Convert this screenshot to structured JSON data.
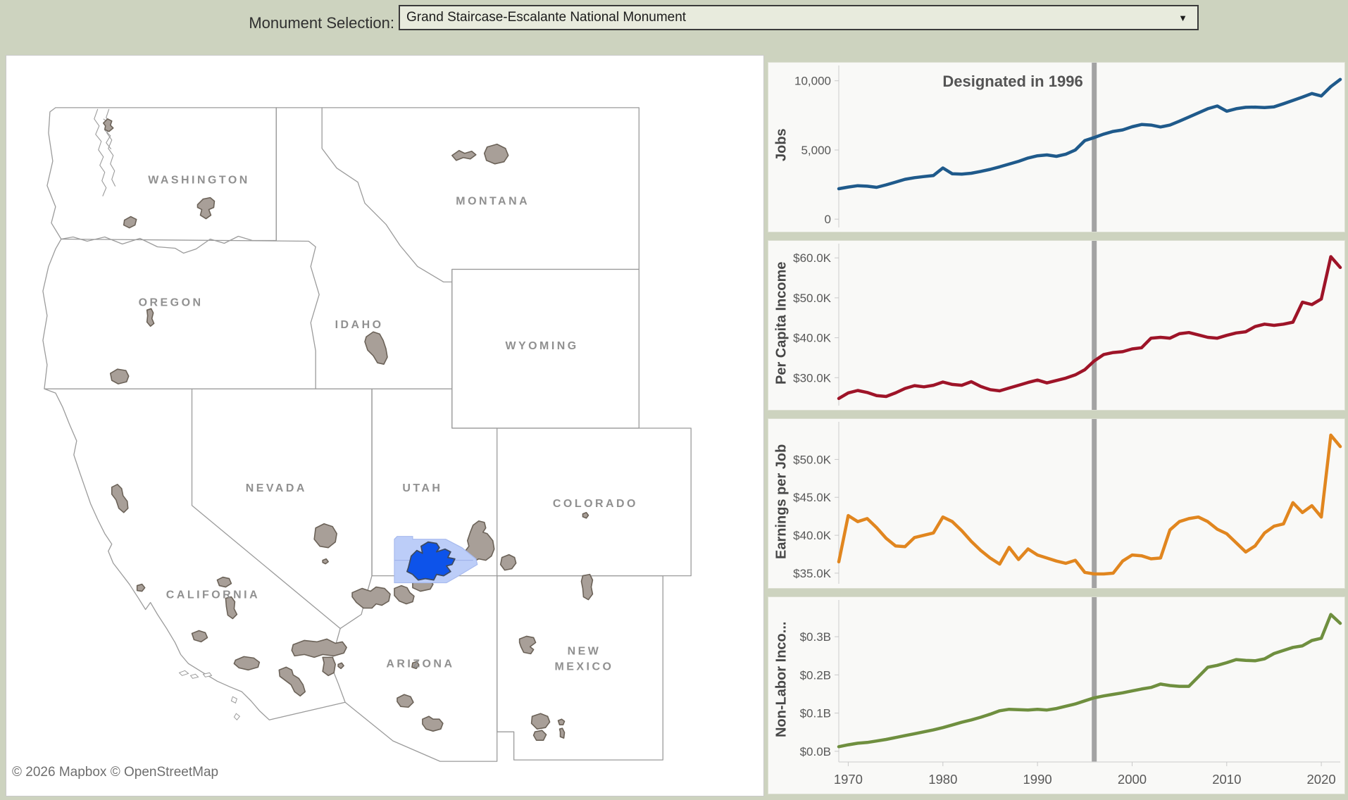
{
  "title_bar": {
    "label": "Monument Selection:",
    "selected_value": "Grand Staircase-Escalante National Monument",
    "caret": "▼"
  },
  "map": {
    "attribution": "© 2026 Mapbox  © OpenStreetMap",
    "state_labels": [
      {
        "text": "WASHINGTON"
      },
      {
        "text": "OREGON"
      },
      {
        "text": "IDAHO"
      },
      {
        "text": "MONTANA"
      },
      {
        "text": "WYOMING"
      },
      {
        "text": "NEVADA"
      },
      {
        "text": "UTAH"
      },
      {
        "text": "COLORADO"
      },
      {
        "text": "CALIFORNIA"
      },
      {
        "text": "ARIZONA"
      },
      {
        "text": "NEW"
      },
      {
        "text": "MEXICO"
      }
    ],
    "selected_monument_color": "#0d53ea",
    "selected_counties_color": "#bccdf8",
    "monument_color": "#a89f98"
  },
  "colors": {
    "background": "#cdd3bf",
    "panel_background": "#f9f9f7",
    "ref_line": "#a3a3a3"
  },
  "ref_line": {
    "year": 1996,
    "label": "Designated in 1996"
  },
  "x_domain": [
    1969,
    2022
  ],
  "x_axis": {
    "ticks": [
      1970,
      1980,
      1990,
      2000,
      2010,
      2020
    ]
  },
  "chart_data": [
    {
      "id": "jobs",
      "type": "line",
      "axis_title": "Jobs",
      "color": "#1f5a8b",
      "ylim": [
        -600,
        10800
      ],
      "yticks": [
        {
          "v": 0,
          "label": "0"
        },
        {
          "v": 5000,
          "label": "5,000"
        },
        {
          "v": 10000,
          "label": "10,000"
        }
      ],
      "values": [
        2200,
        2320,
        2420,
        2380,
        2300,
        2480,
        2680,
        2880,
        3000,
        3080,
        3150,
        3700,
        3280,
        3260,
        3320,
        3450,
        3600,
        3780,
        3980,
        4180,
        4420,
        4580,
        4640,
        4540,
        4700,
        5000,
        5680,
        5900,
        6150,
        6340,
        6450,
        6680,
        6840,
        6800,
        6660,
        6800,
        7080,
        7380,
        7680,
        7980,
        8180,
        7800,
        7980,
        8080,
        8100,
        8060,
        8120,
        8340,
        8580,
        8820,
        9080,
        8900,
        9580,
        10100
      ]
    },
    {
      "id": "pci",
      "type": "line",
      "axis_title": "Per Capita Income",
      "color": "#9e1428",
      "ylim": [
        23000,
        62500
      ],
      "yticks": [
        {
          "v": 30000,
          "label": "$30.0K"
        },
        {
          "v": 40000,
          "label": "$40.0K"
        },
        {
          "v": 50000,
          "label": "$50.0K"
        },
        {
          "v": 60000,
          "label": "$60.0K"
        }
      ],
      "values": [
        24800,
        26200,
        26800,
        26300,
        25500,
        25300,
        26200,
        27300,
        28000,
        27700,
        28100,
        28900,
        28300,
        28100,
        29000,
        27800,
        27000,
        26700,
        27400,
        28100,
        28800,
        29400,
        28700,
        29300,
        29900,
        30700,
        32000,
        34200,
        35800,
        36300,
        36500,
        37200,
        37500,
        39900,
        40100,
        39900,
        41000,
        41300,
        40700,
        40100,
        39900,
        40600,
        41200,
        41500,
        42800,
        43400,
        43100,
        43400,
        43900,
        48900,
        48300,
        49700,
        60300,
        57600
      ]
    },
    {
      "id": "epj",
      "type": "line",
      "axis_title": "Earnings per Job",
      "color": "#e1861f",
      "ylim": [
        33600,
        54400
      ],
      "yticks": [
        {
          "v": 35000,
          "label": "$35.0K"
        },
        {
          "v": 40000,
          "label": "$40.0K"
        },
        {
          "v": 45000,
          "label": "$45.0K"
        },
        {
          "v": 50000,
          "label": "$50.0K"
        }
      ],
      "values": [
        36500,
        42600,
        41800,
        42200,
        41000,
        39600,
        38600,
        38500,
        39700,
        40000,
        40300,
        42400,
        41800,
        40600,
        39200,
        38000,
        37000,
        36200,
        38400,
        36800,
        38200,
        37400,
        37000,
        36600,
        36300,
        36700,
        35100,
        34900,
        34900,
        35000,
        36600,
        37400,
        37300,
        36900,
        37000,
        40700,
        41800,
        42200,
        42400,
        41800,
        40800,
        40200,
        39000,
        37800,
        38600,
        40300,
        41200,
        41500,
        44300,
        43000,
        43900,
        42400,
        53200,
        51700
      ]
    },
    {
      "id": "nli",
      "type": "line",
      "axis_title": "Non-Labor Inco...",
      "color": "#6f8f3f",
      "ylim": [
        -0.028,
        0.385
      ],
      "yticks": [
        {
          "v": 0,
          "label": "$0.0B"
        },
        {
          "v": 0.1,
          "label": "$0.1B"
        },
        {
          "v": 0.2,
          "label": "$0.2B"
        },
        {
          "v": 0.3,
          "label": "$0.3B"
        }
      ],
      "values": [
        0.012,
        0.017,
        0.021,
        0.023,
        0.027,
        0.031,
        0.036,
        0.041,
        0.046,
        0.051,
        0.056,
        0.062,
        0.069,
        0.076,
        0.082,
        0.089,
        0.097,
        0.106,
        0.11,
        0.109,
        0.108,
        0.11,
        0.108,
        0.112,
        0.118,
        0.124,
        0.132,
        0.14,
        0.145,
        0.149,
        0.153,
        0.158,
        0.163,
        0.167,
        0.176,
        0.172,
        0.17,
        0.17,
        0.195,
        0.22,
        0.225,
        0.232,
        0.24,
        0.238,
        0.237,
        0.242,
        0.256,
        0.264,
        0.272,
        0.276,
        0.29,
        0.296,
        0.358,
        0.335
      ]
    }
  ]
}
